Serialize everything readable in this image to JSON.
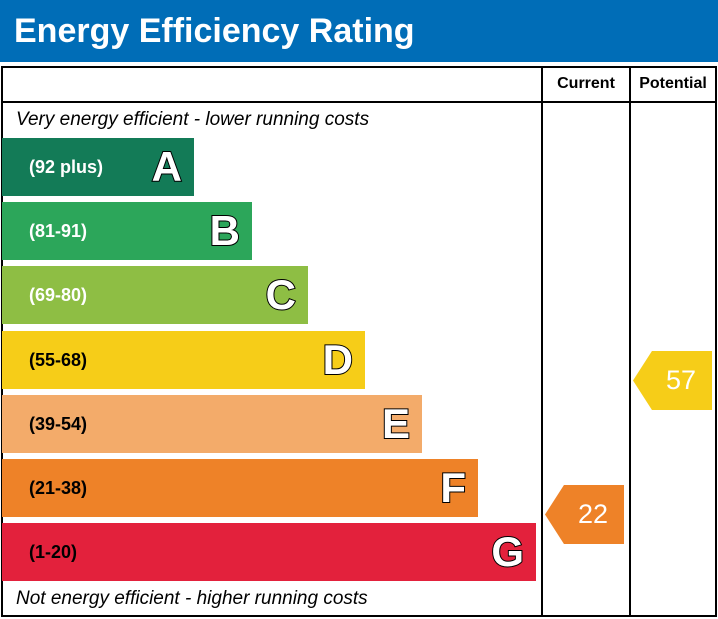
{
  "title": "Energy Efficiency Rating",
  "chart_data": {
    "type": "bar",
    "columns": [
      "Current",
      "Potential"
    ],
    "top_note": "Very energy efficient - lower running costs",
    "bottom_note": "Not energy efficient - higher running costs",
    "bands": [
      {
        "letter": "A",
        "range": "(92 plus)",
        "color": "#137b57"
      },
      {
        "letter": "B",
        "range": "(81-91)",
        "color": "#2ca65a"
      },
      {
        "letter": "C",
        "range": "(69-80)",
        "color": "#8ebe44"
      },
      {
        "letter": "D",
        "range": "(55-68)",
        "color": "#f6cd18"
      },
      {
        "letter": "E",
        "range": "(39-54)",
        "color": "#f3ab6a"
      },
      {
        "letter": "F",
        "range": "(21-38)",
        "color": "#ee8228"
      },
      {
        "letter": "G",
        "range": "(1-20)",
        "color": "#e3213c"
      }
    ],
    "current": {
      "value": "22",
      "band": "F",
      "color": "#ee8228"
    },
    "potential": {
      "value": "57",
      "band": "D",
      "color": "#f6cd18"
    }
  }
}
